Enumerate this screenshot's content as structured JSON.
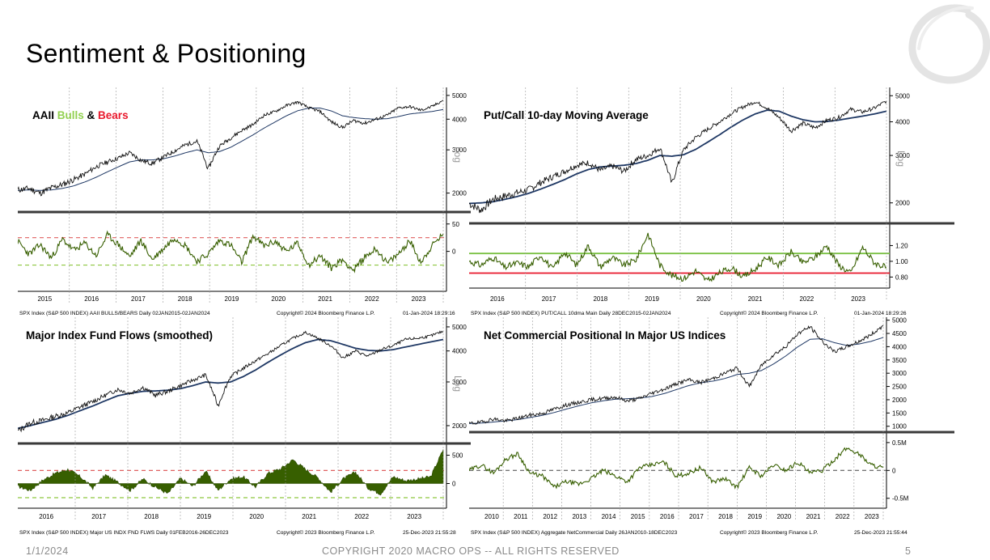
{
  "slide": {
    "title": "Sentiment & Positioning",
    "footer_date": "1/1/2024",
    "footer_copyright": "COPYRIGHT 2020 MACRO OPS -- ALL RIGHTS RESERVED",
    "page_number": "5"
  },
  "colors": {
    "bulls": "#92d050",
    "bears": "#e8192c",
    "price": "#111111",
    "ma": "#1f3864",
    "indicator": "#375f00",
    "upper_band": "#e06060",
    "lower_band": "#8dc63f"
  },
  "chart_data": [
    {
      "id": "aaii",
      "type": "line",
      "title_parts": [
        "AAII ",
        "Bulls",
        " & ",
        "Bears"
      ],
      "log_label": "Log",
      "upper": {
        "series": [
          {
            "values": [
              2060,
              2090,
              2000,
              2100,
              2170,
              2270,
              2390,
              2560,
              2680,
              2780,
              2920,
              2720,
              2640,
              2800,
              2970,
              3150,
              3250,
              2500,
              3100,
              3350,
              3600,
              3800,
              4150,
              4300,
              4550,
              4700,
              4450,
              4300,
              3900,
              3700,
              3950,
              3850,
              4000,
              4150,
              4450,
              4500,
              4350,
              4500,
              4780
            ]
          },
          {
            "values": [
              2050,
              2060,
              2050,
              2060,
              2090,
              2140,
              2220,
              2320,
              2440,
              2560,
              2680,
              2730,
              2730,
              2760,
              2830,
              2920,
              3000,
              2920,
              2950,
              3070,
              3250,
              3450,
              3680,
              3900,
              4130,
              4330,
              4440,
              4440,
              4320,
              4130,
              4060,
              4020,
              4000,
              4020,
              4100,
              4200,
              4250,
              4300,
              4380
            ]
          }
        ],
        "ticks": [
          2000,
          3000,
          4000,
          5000
        ],
        "tick_labels": [
          "2000",
          "3000",
          "4000",
          "5000"
        ],
        "range": [
          1700,
          5150
        ]
      },
      "lower": {
        "series": [
          {
            "values": [
              18,
              -5,
              12,
              -12,
              22,
              2,
              15,
              -8,
              30,
              12,
              -10,
              20,
              -15,
              5,
              25,
              10,
              -18,
              -5,
              20,
              12,
              -20,
              28,
              10,
              18,
              0,
              15,
              -25,
              -8,
              -30,
              -15,
              -35,
              -10,
              5,
              -22,
              -5,
              20,
              -20,
              10,
              32
            ]
          }
        ],
        "bands": [
          25,
          -25
        ],
        "ticks": [
          50,
          0
        ],
        "tick_labels": [
          "50",
          "0"
        ],
        "range": [
          -70,
          60
        ]
      },
      "x_labels": [
        "2015",
        "2016",
        "2017",
        "2018",
        "2019",
        "2020",
        "2021",
        "2022",
        "2023"
      ],
      "footer_left": "SPX Index (S&P 500 INDEX) AAII BULLS/BEARS  Daily 02JAN2015-02JAN2024",
      "footer_mid": "Copyright© 2024 Bloomberg Finance L.P.",
      "footer_right": "01-Jan-2024 18:29:16"
    },
    {
      "id": "putcall",
      "type": "line",
      "title_parts": [
        "Put/Call 10-day Moving Average"
      ],
      "log_label": "Log",
      "upper": {
        "series": [
          {
            "values": [
              1990,
              1880,
              2060,
              2120,
              2180,
              2240,
              2380,
              2500,
              2620,
              2760,
              2820,
              2640,
              2740,
              2620,
              2900,
              3000,
              3200,
              2350,
              3150,
              3500,
              3750,
              4000,
              4300,
              4550,
              4750,
              4500,
              4150,
              3700,
              3950,
              3800,
              4050,
              4150,
              4450,
              4350,
              4500,
              4780
            ]
          },
          {
            "values": [
              1990,
              2000,
              2020,
              2060,
              2110,
              2170,
              2250,
              2340,
              2440,
              2560,
              2660,
              2720,
              2740,
              2760,
              2800,
              2880,
              3000,
              2980,
              3020,
              3160,
              3360,
              3580,
              3830,
              4070,
              4280,
              4420,
              4380,
              4200,
              4070,
              4000,
              4010,
              4060,
              4130,
              4200,
              4280,
              4380
            ]
          }
        ],
        "ticks": [
          2000,
          3000,
          4000,
          5000
        ],
        "tick_labels": [
          "2000",
          "3000",
          "4000",
          "5000"
        ],
        "range": [
          1750,
          5150
        ]
      },
      "lower": {
        "series": [
          {
            "values": [
              1.0,
              0.95,
              1.05,
              0.92,
              0.98,
              0.93,
              1.08,
              0.9,
              1.12,
              0.95,
              1.2,
              0.93,
              1.05,
              0.95,
              1.02,
              1.35,
              0.95,
              0.82,
              0.78,
              0.88,
              0.75,
              0.85,
              0.92,
              0.8,
              0.9,
              1.05,
              0.95,
              1.12,
              0.98,
              1.05,
              1.2,
              0.95,
              0.85,
              1.18,
              0.98,
              0.92
            ]
          }
        ],
        "bands": [
          1.1,
          0.85
        ],
        "ticks": [
          1.2,
          1.0,
          0.8
        ],
        "tick_labels": [
          "1.20",
          "1.00",
          "0.80"
        ],
        "range": [
          0.68,
          1.4
        ]
      },
      "x_labels": [
        "2016",
        "2017",
        "2018",
        "2019",
        "2020",
        "2021",
        "2022",
        "2023"
      ],
      "footer_left": "SPX Index (S&P 500 INDEX) PUT/CALL 10dma Main  Daily 28DEC2015-02JAN2024",
      "footer_mid": "Copyright© 2024 Bloomberg Finance L.P.",
      "footer_right": "01-Jan-2024 18:29:26"
    },
    {
      "id": "fundflows",
      "type": "area",
      "title_parts": [
        "Major Index Fund Flows (smoothed)"
      ],
      "log_label": "Log",
      "upper": {
        "series": [
          {
            "values": [
              1900,
              2050,
              2100,
              2180,
              2250,
              2380,
              2500,
              2650,
              2800,
              2700,
              2850,
              2650,
              2750,
              2900,
              3050,
              3200,
              2400,
              3150,
              3400,
              3650,
              3900,
              4200,
              4500,
              4750,
              4500,
              4200,
              3750,
              4000,
              3800,
              4050,
              4200,
              4450,
              4500,
              4600,
              4800
            ]
          },
          {
            "values": [
              1950,
              2000,
              2060,
              2120,
              2200,
              2300,
              2400,
              2520,
              2640,
              2700,
              2750,
              2760,
              2780,
              2820,
              2900,
              3000,
              2970,
              3000,
              3150,
              3350,
              3600,
              3850,
              4100,
              4320,
              4450,
              4400,
              4250,
              4100,
              4020,
              4000,
              4050,
              4150,
              4250,
              4350,
              4450
            ]
          }
        ],
        "ticks": [
          2000,
          3000,
          4000,
          5000
        ],
        "tick_labels": [
          "2000",
          "3000",
          "4000",
          "5000"
        ],
        "range": [
          1800,
          5150
        ]
      },
      "lower": {
        "series": [
          {
            "values": [
              -50,
              -120,
              60,
              180,
              250,
              120,
              -80,
              150,
              20,
              -120,
              80,
              -60,
              -180,
              90,
              -50,
              220,
              -120,
              80,
              120,
              -60,
              180,
              260,
              420,
              250,
              100,
              -150,
              80,
              200,
              -80,
              -180,
              120,
              50,
              80,
              120,
              600
            ]
          }
        ],
        "bands": [
          230,
          -250
        ],
        "ticks": [
          500,
          0
        ],
        "tick_labels": [
          "500",
          "0"
        ],
        "range": [
          -350,
          650
        ]
      },
      "x_labels": [
        "2016",
        "2017",
        "2018",
        "2019",
        "2020",
        "2021",
        "2022",
        "2023"
      ],
      "footer_left": "SPX Index (S&P 500 INDEX) Major US INDX FND FLWS  Daily 01FEB2016-26DEC2023",
      "footer_mid": "Copyright© 2023 Bloomberg Finance L.P.",
      "footer_right": "25-Dec-2023 21:55:28"
    },
    {
      "id": "netcommercial",
      "type": "line",
      "title_parts": [
        "Net Commercial Positional In Major US Indices"
      ],
      "log_label": "",
      "upper": {
        "series": [
          {
            "values": [
              1100,
              1150,
              1280,
              1200,
              1300,
              1420,
              1480,
              1650,
              1800,
              1900,
              2000,
              2050,
              2100,
              1950,
              2050,
              2250,
              2400,
              2600,
              2750,
              2650,
              2800,
              3000,
              3200,
              2500,
              3300,
              3700,
              4000,
              4500,
              4750,
              4200,
              3800,
              4000,
              4200,
              4450,
              4800
            ]
          },
          {
            "values": [
              1100,
              1120,
              1160,
              1200,
              1250,
              1330,
              1410,
              1520,
              1650,
              1770,
              1880,
              1960,
              2020,
              2040,
              2060,
              2120,
              2230,
              2380,
              2530,
              2640,
              2700,
              2800,
              2950,
              3000,
              3100,
              3350,
              3650,
              4000,
              4280,
              4300,
              4150,
              4050,
              4100,
              4200,
              4350
            ]
          }
        ],
        "ticks": [
          1000,
          1500,
          2000,
          2500,
          3000,
          3500,
          4000,
          4500,
          5000
        ],
        "tick_labels": [
          "1000",
          "1500",
          "2000",
          "2500",
          "3000",
          "3500",
          "4000",
          "4500",
          "5000"
        ],
        "range": [
          900,
          5050
        ]
      },
      "lower": {
        "series": [
          {
            "values": [
              0.0,
              0.1,
              -0.05,
              0.2,
              0.3,
              -0.05,
              -0.1,
              -0.3,
              -0.2,
              -0.25,
              -0.15,
              0.0,
              -0.1,
              -0.2,
              0.05,
              0.1,
              0.15,
              -0.1,
              -0.05,
              0.05,
              -0.2,
              -0.15,
              -0.3,
              0.05,
              -0.1,
              0.1,
              0.0,
              0.15,
              -0.05,
              0.0,
              0.2,
              0.4,
              0.3,
              0.1,
              0.05
            ]
          }
        ],
        "bands": [
          0
        ],
        "ticks": [
          0.5,
          0,
          -0.5
        ],
        "tick_labels": [
          "0.5M",
          "0",
          "-0.5M"
        ],
        "range": [
          -0.62,
          0.6
        ]
      },
      "x_labels": [
        "2010",
        "2011",
        "2012",
        "2013",
        "2014",
        "2015",
        "2016",
        "2017",
        "2018",
        "2019",
        "2020",
        "2021",
        "2022",
        "2023"
      ],
      "footer_left": "SPX Index (S&P 500 INDEX) Aggregate NetCommercial  Daily 26JAN2010-18DEC2023",
      "footer_mid": "Copyright© 2023 Bloomberg Finance L.P.",
      "footer_right": "25-Dec-2023 21:55:44"
    }
  ]
}
